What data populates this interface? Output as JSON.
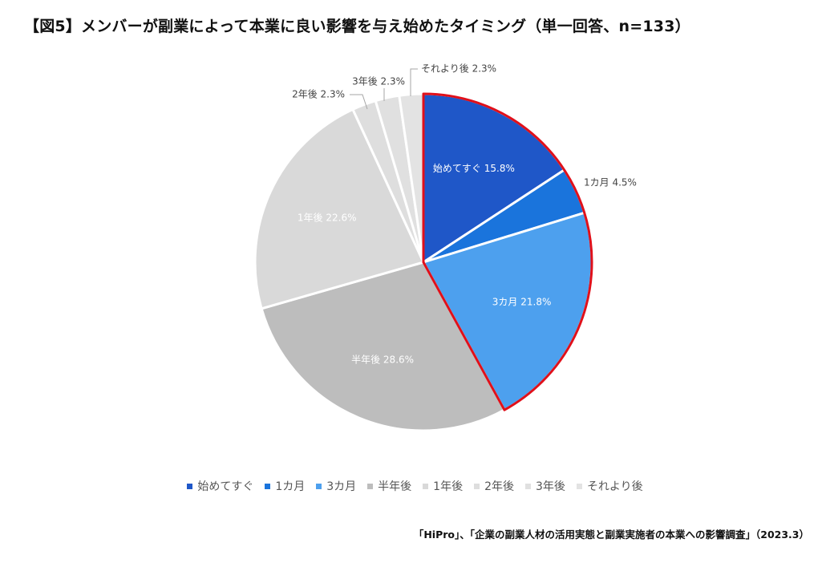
{
  "title": "【図5】メンバーが副業によって本業に良い影響を与え始めたタイミング（単一回答、n=133）",
  "source": "「HiPro」、「企業の副業人材の活用実態と副業実施者の本業への影響調査」（2023.3）",
  "chart_data": {
    "type": "pie",
    "unit": "%",
    "slices": [
      {
        "label": "始めてすぐ",
        "value": 15.8,
        "color": "#1f57c8",
        "text_color": "#ffffff"
      },
      {
        "label": "1カ月",
        "value": 4.5,
        "color": "#1a74dc",
        "text_color": "#444444"
      },
      {
        "label": "3カ月",
        "value": 21.8,
        "color": "#4da0ee",
        "text_color": "#ffffff"
      },
      {
        "label": "半年後",
        "value": 28.6,
        "color": "#bdbdbd",
        "text_color": "#ffffff"
      },
      {
        "label": "1年後",
        "value": 22.6,
        "color": "#d9d9d9",
        "text_color": "#ffffff"
      },
      {
        "label": "2年後",
        "value": 2.3,
        "color": "#dedede",
        "text_color": "#444444"
      },
      {
        "label": "3年後",
        "value": 2.3,
        "color": "#e0e0e0",
        "text_color": "#444444"
      },
      {
        "label": "それより後",
        "value": 2.3,
        "color": "#e3e3e3",
        "text_color": "#444444"
      }
    ],
    "highlight": {
      "slices": [
        "始めてすぐ",
        "1カ月",
        "3カ月"
      ],
      "outline_color": "#e0101a"
    },
    "data_labels": [
      "始めてすぐ 15.8%",
      "1カ月 4.5%",
      "3カ月 21.8%",
      "半年後 28.6%",
      "1年後 22.6%",
      "2年後 2.3%",
      "3年後 2.3%",
      "それより後 2.3%"
    ],
    "legend": {
      "position": "bottom",
      "entries": [
        "始めてすぐ",
        "1カ月",
        "3カ月",
        "半年後",
        "1年後",
        "2年後",
        "3年後",
        "それより後"
      ]
    }
  }
}
